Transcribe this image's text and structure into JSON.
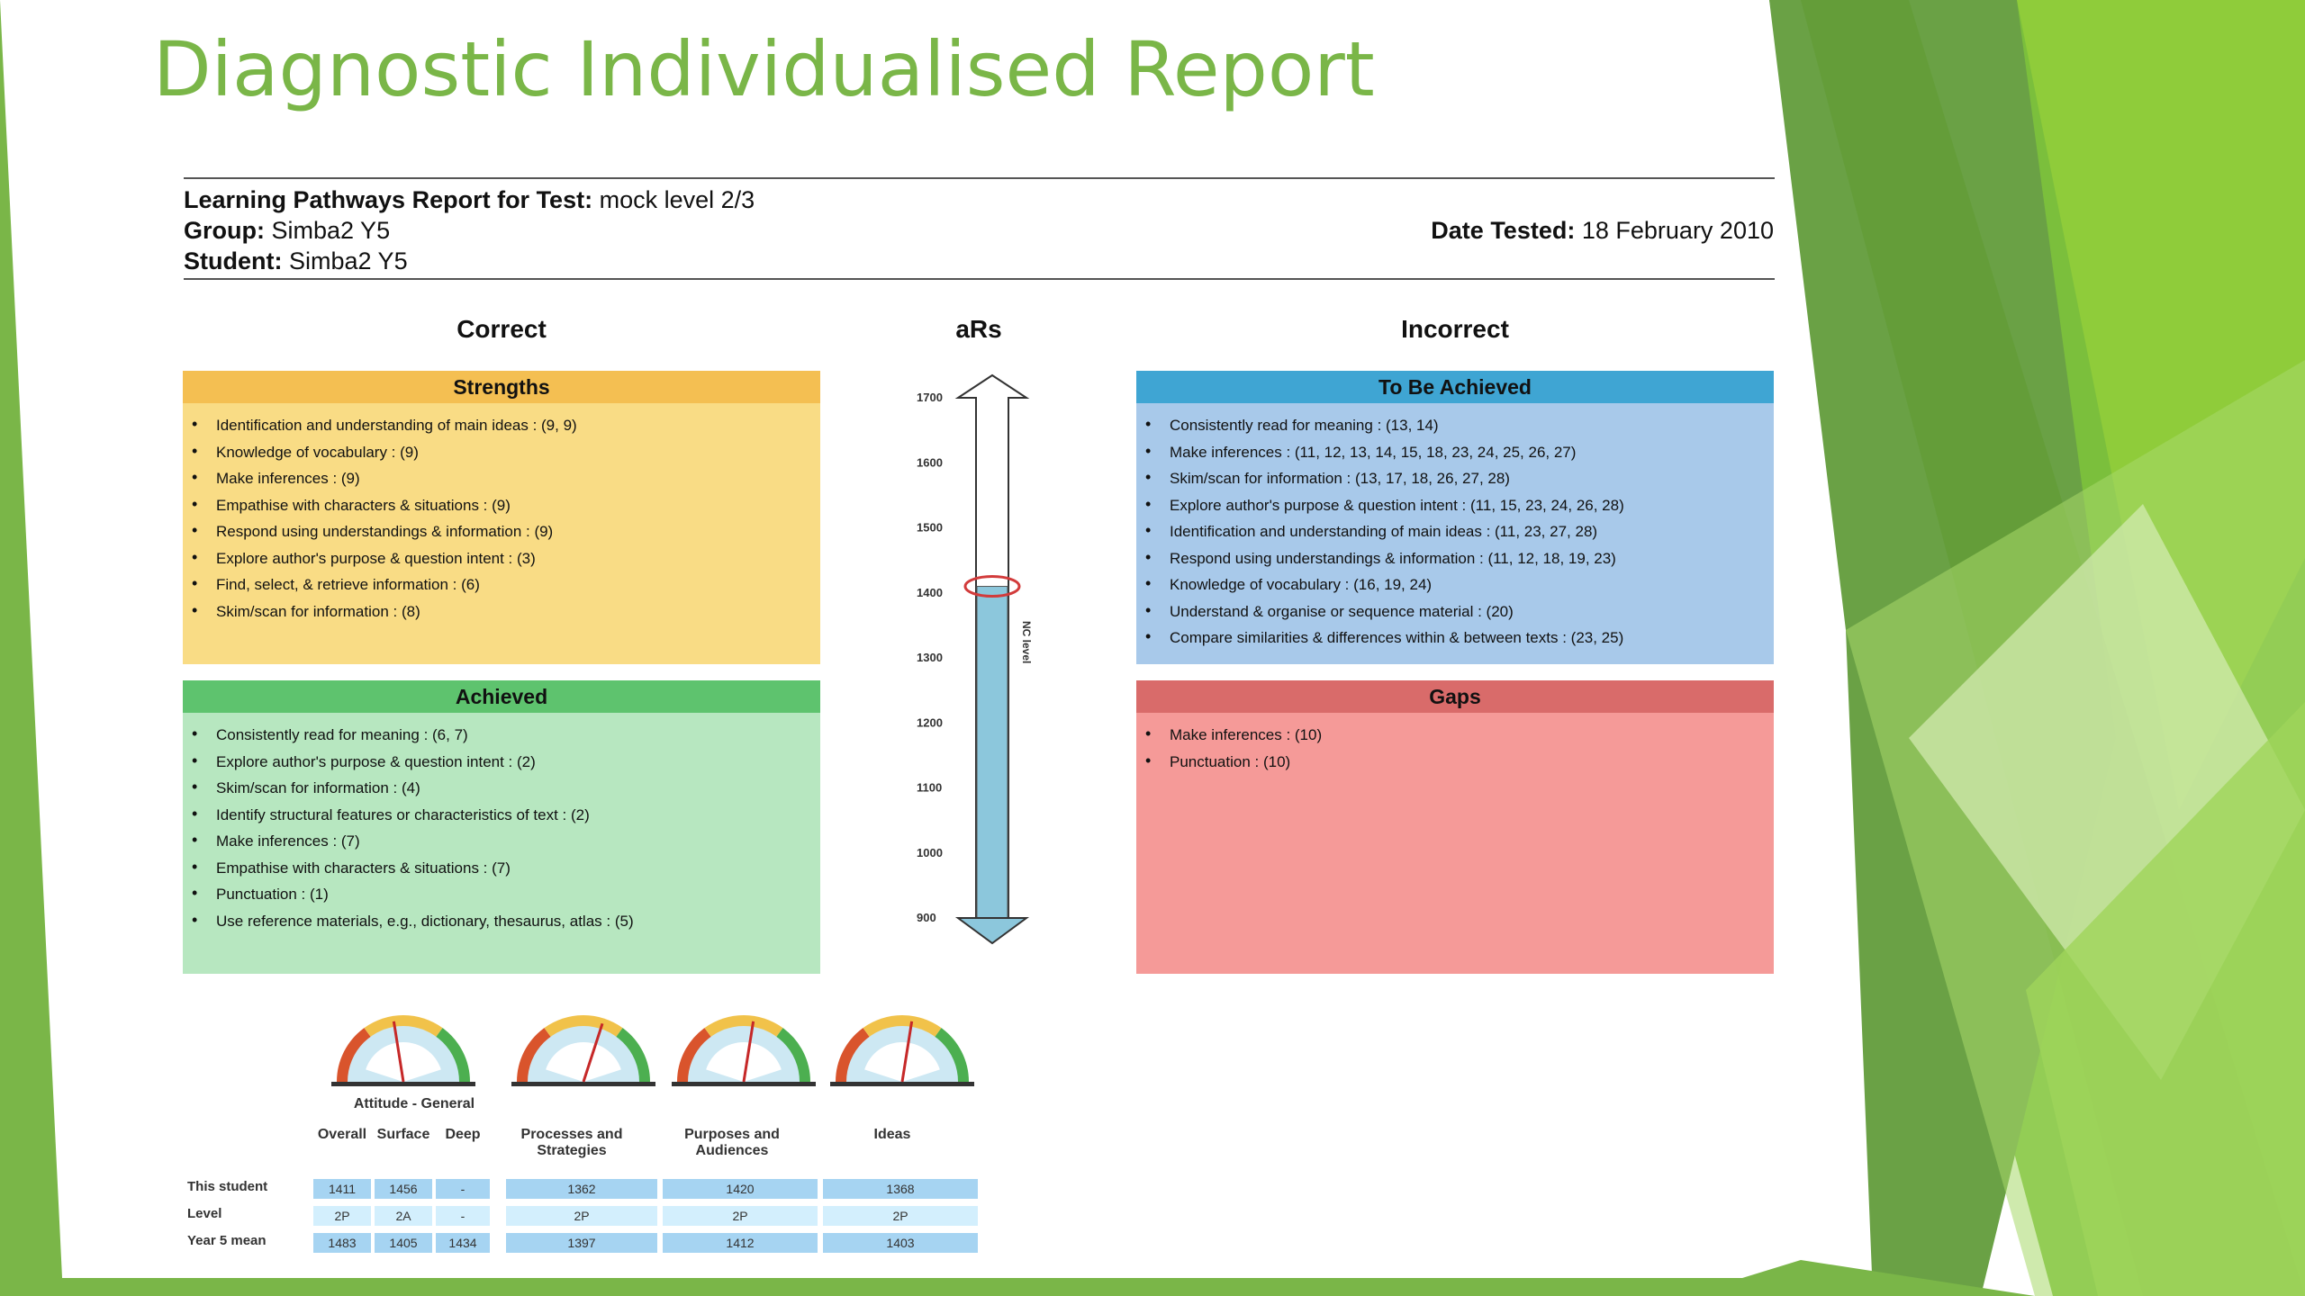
{
  "slide": {
    "title": "Diagnostic Individualised Report"
  },
  "report": {
    "test_label": "Learning Pathways Report for Test:",
    "test_value": "mock level 2/3",
    "group_label": "Group:",
    "group_value": "Simba2 Y5",
    "student_label": "Student:",
    "student_value": "Simba2 Y5",
    "date_label": "Date Tested:",
    "date_value": "18 February 2010"
  },
  "columns": {
    "correct": "Correct",
    "ars": "aRs",
    "incorrect": "Incorrect"
  },
  "strengths": {
    "title": "Strengths",
    "items": [
      "Identification and understanding of main ideas : (9, 9)",
      "Knowledge of vocabulary : (9)",
      "Make inferences : (9)",
      "Empathise with characters & situations : (9)",
      "Respond using understandings & information : (9)",
      "Explore author's purpose & question intent : (3)",
      "Find, select, & retrieve information : (6)",
      "Skim/scan for information : (8)"
    ]
  },
  "achieved": {
    "title": "Achieved",
    "items": [
      "Consistently read for meaning : (6, 7)",
      "Explore author's purpose & question intent : (2)",
      "Skim/scan for information : (4)",
      "Identify structural features or characteristics of text : (2)",
      "Make inferences : (7)",
      "Empathise with characters & situations : (7)",
      "Punctuation : (1)",
      "Use reference materials, e.g., dictionary, thesaurus, atlas : (5)"
    ]
  },
  "to_be_achieved": {
    "title": "To Be Achieved",
    "items": [
      "Consistently read for meaning : (13, 14)",
      "Make inferences : (11, 12, 13, 14, 15, 18, 23, 24, 25, 26, 27)",
      "Skim/scan for information : (13, 17, 18, 26, 27, 28)",
      "Explore author's purpose & question intent : (11, 15, 23, 24, 26, 28)",
      "Identification and understanding of main ideas : (11, 23, 27, 28)",
      "Respond using understandings & information : (11, 12, 18, 19, 23)",
      "Knowledge of vocabulary : (16, 19, 24)",
      "Understand & organise or sequence material : (20)",
      "Compare similarities & differences within & between texts : (23, 25)"
    ]
  },
  "gaps": {
    "title": "Gaps",
    "items": [
      "Make inferences : (10)",
      "Punctuation : (10)"
    ]
  },
  "ars_scale": {
    "ticks": [
      "1700",
      "1600",
      "1500",
      "1400",
      "1300",
      "1200",
      "1100",
      "1000",
      "900"
    ],
    "student_score": 1410,
    "side_label": "NC level"
  },
  "gauges": [
    {
      "name": "attitude",
      "needle_fraction": 0.45
    },
    {
      "name": "processes",
      "needle_fraction": 0.6
    },
    {
      "name": "purposes",
      "needle_fraction": 0.55
    },
    {
      "name": "ideas",
      "needle_fraction": 0.55
    }
  ],
  "table": {
    "group_header": "Attitude - General",
    "headers": [
      "Overall",
      "Surface",
      "Deep",
      "Processes and Strategies",
      "Purposes and Audiences",
      "Ideas"
    ],
    "rows": [
      {
        "label": "This student",
        "values": [
          "1411",
          "1456",
          "-",
          "1362",
          "1420",
          "1368"
        ]
      },
      {
        "label": "Level",
        "values": [
          "2P",
          "2A",
          "-",
          "2P",
          "2P",
          "2P"
        ]
      },
      {
        "label": "Year 5 mean",
        "values": [
          "1483",
          "1405",
          "1434",
          "1397",
          "1412",
          "1403"
        ]
      }
    ]
  }
}
